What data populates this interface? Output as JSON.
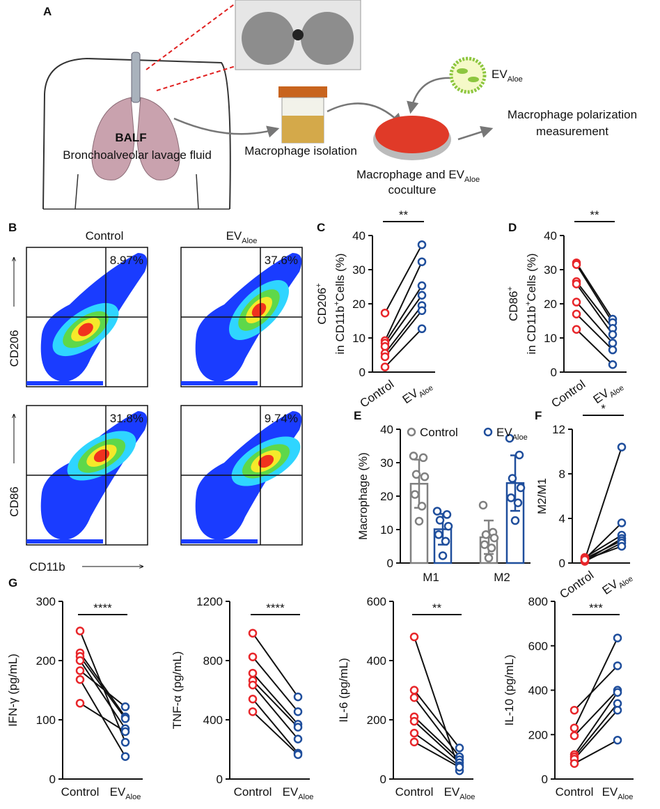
{
  "panel_labels": [
    "A",
    "B",
    "C",
    "D",
    "E",
    "F",
    "G"
  ],
  "diagram": {
    "balf": "BALF",
    "balf_full": "Bronchoalveolar lavage fluid",
    "isolation": "Macrophage isolation",
    "ev": [
      {
        "t": "EV"
      },
      {
        "t": "Aloe",
        "sub": true
      }
    ],
    "coculture": [
      {
        "t": "Macrophage and EV"
      },
      {
        "t": "Aloe",
        "sub": true
      }
    ],
    "coculture2": "coculture",
    "measurement": [
      "Macrophage polarization",
      "measurement"
    ]
  },
  "flow": {
    "columns": [
      "Control",
      [
        {
          "t": "EV"
        },
        {
          "t": "Aloe",
          "sub": true
        }
      ]
    ],
    "rows": [
      "CD206",
      "CD86"
    ],
    "xlabel": "CD11b",
    "gates": [
      "8.97%",
      "37.6%",
      "31.8%",
      "9.74%"
    ]
  },
  "chart_data": [
    {
      "type": "paired",
      "ylabel": [
        [
          {
            "t": "CD206"
          },
          {
            "t": "+",
            "sup": true
          }
        ],
        [
          {
            "t": "in CD11b"
          },
          {
            "t": "+",
            "sup": true
          },
          {
            "t": "Cells (%)"
          }
        ]
      ],
      "ylim": [
        0,
        40
      ],
      "yticks": [
        0,
        10,
        20,
        30,
        40
      ],
      "annotation": "**",
      "series": [
        {
          "name": "Control",
          "color": "#e8262a",
          "values": [
            17.3,
            9.2,
            8.5,
            7.5,
            5.5,
            4.5,
            1.5
          ]
        },
        {
          "name": [
            {
              "t": "EV"
            },
            {
              "t": "Aloe",
              "sub": true
            }
          ],
          "color": "#1f4e9c",
          "values": [
            37.3,
            32.3,
            25.3,
            22.5,
            19.5,
            18,
            12.7
          ]
        }
      ]
    },
    {
      "type": "paired",
      "ylabel": [
        [
          {
            "t": "CD86"
          },
          {
            "t": "+",
            "sup": true
          }
        ],
        [
          {
            "t": "in CD11b"
          },
          {
            "t": "+",
            "sup": true
          },
          {
            "t": "Cells (%)"
          }
        ]
      ],
      "ylim": [
        0,
        40
      ],
      "yticks": [
        0,
        10,
        20,
        30,
        40
      ],
      "annotation": "**",
      "series": [
        {
          "name": "Control",
          "color": "#e8262a",
          "values": [
            32,
            31.5,
            26.5,
            25.8,
            20.5,
            17,
            12.5
          ]
        },
        {
          "name": [
            {
              "t": "EV"
            },
            {
              "t": "Aloe",
              "sub": true
            }
          ],
          "color": "#1f4e9c",
          "values": [
            15.5,
            14.5,
            12.8,
            11,
            8.5,
            6.5,
            2.2
          ]
        }
      ]
    },
    {
      "type": "bar",
      "ylabel": [
        [
          {
            "t": "Macrophage (%)"
          }
        ]
      ],
      "ylim": [
        0,
        40
      ],
      "yticks": [
        0,
        10,
        20,
        30,
        40
      ],
      "categories": [
        "M1",
        "M2"
      ],
      "series": [
        {
          "name": "Control",
          "color": "#808080",
          "values": [
            23.7,
            7.7
          ],
          "errors": [
            7.2,
            5.0
          ],
          "points": [
            [
              32,
              31.5,
              26.5,
              25.8,
              20.5,
              17,
              12.5
            ],
            [
              17.3,
              9.2,
              8.5,
              7.5,
              5.5,
              4.5,
              1.5
            ]
          ]
        },
        {
          "name": [
            {
              "t": "EV"
            },
            {
              "t": "Aloe",
              "sub": true
            }
          ],
          "color": "#1f4e9c",
          "values": [
            10.1,
            23.9
          ],
          "errors": [
            4.6,
            8.3
          ],
          "points": [
            [
              15.5,
              14.5,
              12.8,
              11,
              8.5,
              6.5,
              2.2
            ],
            [
              37.3,
              32.3,
              25.3,
              22.5,
              19.5,
              18,
              12.7
            ]
          ]
        }
      ]
    },
    {
      "type": "paired",
      "ylabel": [
        [
          {
            "t": "M2/M1"
          }
        ]
      ],
      "ylim": [
        0,
        12
      ],
      "yticks": [
        0,
        4,
        8,
        12
      ],
      "annotation": "*",
      "series": [
        {
          "name": "Control",
          "color": "#e8262a",
          "values": [
            0.3,
            0.35,
            0.5,
            0.2,
            0.4,
            0.15,
            0.3
          ]
        },
        {
          "name": [
            {
              "t": "EV"
            },
            {
              "t": "Aloe",
              "sub": true
            }
          ],
          "color": "#1f4e9c",
          "values": [
            10.4,
            3.6,
            2.5,
            2.2,
            2.0,
            1.8,
            1.5
          ]
        }
      ]
    },
    {
      "type": "paired",
      "ylabel": [
        [
          {
            "t": "IFN-γ (pg/mL)"
          }
        ]
      ],
      "ylim": [
        0,
        300
      ],
      "yticks": [
        0,
        100,
        200,
        300
      ],
      "annotation": "****",
      "series": [
        {
          "name": "Control",
          "color": "#e8262a",
          "values": [
            250,
            213,
            207,
            200,
            183,
            168,
            128
          ]
        },
        {
          "name": [
            {
              "t": "EV"
            },
            {
              "t": "Aloe",
              "sub": true
            }
          ],
          "color": "#1f4e9c",
          "values": [
            62,
            105,
            102,
            85,
            122,
            38,
            80
          ]
        }
      ]
    },
    {
      "type": "paired",
      "ylabel": [
        [
          {
            "t": "TNF-α (pg/mL)"
          }
        ]
      ],
      "ylim": [
        0,
        1200
      ],
      "yticks": [
        0,
        400,
        800,
        1200
      ],
      "annotation": "****",
      "series": [
        {
          "name": "Control",
          "color": "#e8262a",
          "values": [
            985,
            825,
            715,
            665,
            635,
            540,
            455
          ]
        },
        {
          "name": [
            {
              "t": "EV"
            },
            {
              "t": "Aloe",
              "sub": true
            }
          ],
          "color": "#1f4e9c",
          "values": [
            555,
            455,
            370,
            350,
            270,
            175,
            165
          ]
        }
      ]
    },
    {
      "type": "paired",
      "ylabel": [
        [
          {
            "t": "IL-6 (pg/mL)"
          }
        ]
      ],
      "ylim": [
        0,
        600
      ],
      "yticks": [
        0,
        200,
        400,
        600
      ],
      "annotation": "**",
      "series": [
        {
          "name": "Control",
          "color": "#e8262a",
          "values": [
            480,
            300,
            275,
            210,
            195,
            155,
            125
          ]
        },
        {
          "name": [
            {
              "t": "EV"
            },
            {
              "t": "Aloe",
              "sub": true
            }
          ],
          "color": "#1f4e9c",
          "values": [
            28,
            105,
            75,
            65,
            55,
            45,
            40
          ]
        }
      ]
    },
    {
      "type": "paired",
      "ylabel": [
        [
          {
            "t": "IL-10 (pg/mL)"
          }
        ]
      ],
      "ylim": [
        0,
        800
      ],
      "yticks": [
        0,
        200,
        400,
        600,
        800
      ],
      "annotation": "***",
      "series": [
        {
          "name": "Control",
          "color": "#e8262a",
          "values": [
            310,
            230,
            195,
            110,
            100,
            90,
            70
          ]
        },
        {
          "name": [
            {
              "t": "EV"
            },
            {
              "t": "Aloe",
              "sub": true
            }
          ],
          "color": "#1f4e9c",
          "values": [
            510,
            635,
            400,
            390,
            340,
            310,
            175
          ]
        }
      ]
    }
  ]
}
